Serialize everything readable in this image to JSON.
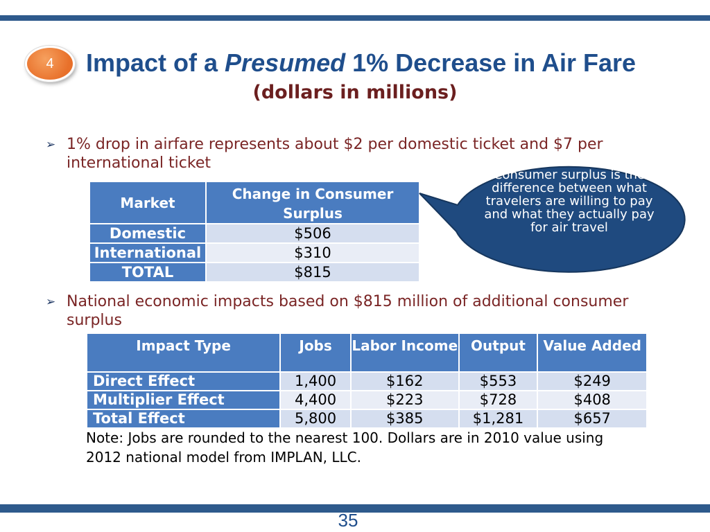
{
  "slide": {
    "badge_number": "4",
    "title_part1": "Impact of a ",
    "title_italic": "Presumed",
    "title_part2": " 1% Decrease in Air Fare",
    "subtitle": "(dollars in millions)",
    "page_number": "35",
    "colors": {
      "accent_blue": "#2e5a8c",
      "header_blue": "#4a7cc0",
      "title_blue": "#1f4e8c",
      "bullet_text": "#7a2525",
      "badge_orange": "#e8702a",
      "callout_fill": "#1f4a7f"
    }
  },
  "bullets": [
    {
      "icon": "arrow-bullet-icon",
      "text": "1% drop in airfare represents about $2 per domestic ticket and $7 per international ticket"
    },
    {
      "icon": "arrow-bullet-icon",
      "text": "National economic impacts based on $815 million of additional consumer surplus"
    }
  ],
  "surplus_table": {
    "headers": [
      "Market",
      "Change in Consumer Surplus"
    ],
    "rows": [
      [
        "Domestic",
        "$506"
      ],
      [
        "International",
        "$310"
      ],
      [
        "TOTAL",
        "$815"
      ]
    ]
  },
  "callout": {
    "text": "Consumer surplus is the difference between what travelers are willing to pay and what they actually pay for air travel"
  },
  "impact_table": {
    "headers": [
      "Impact Type",
      "Jobs",
      "Labor Income",
      "Output",
      "Value Added"
    ],
    "rows": [
      [
        "Direct Effect",
        "1,400",
        "$162",
        "$553",
        "$249"
      ],
      [
        "Multiplier Effect",
        "4,400",
        "$223",
        "$728",
        "$408"
      ],
      [
        "Total Effect",
        "5,800",
        "$385",
        "$1,281",
        "$657"
      ]
    ]
  },
  "note": "Note: Jobs are rounded to the nearest 100.  Dollars are in 2010 value using 2012 national model from IMPLAN, LLC."
}
